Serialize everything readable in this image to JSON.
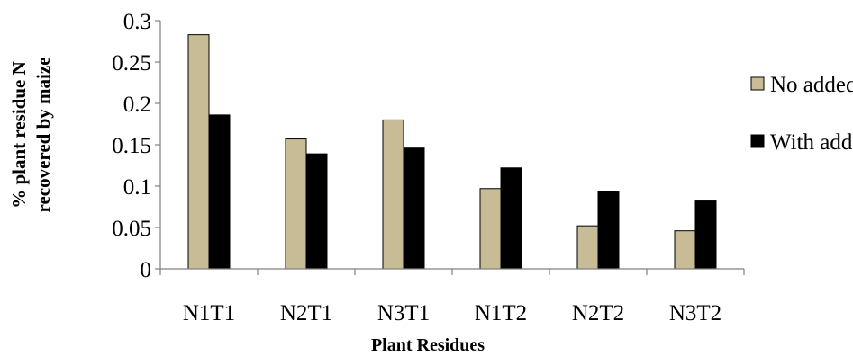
{
  "chart_data": {
    "type": "bar",
    "title": "",
    "xlabel": "Plant Residues",
    "ylabel_lines": [
      "% plant residue N",
      "recovered by maize"
    ],
    "categories": [
      "N1T1",
      "N2T1",
      "N3T1",
      "N1T2",
      "N2T2",
      "N3T2"
    ],
    "ylim": [
      0,
      0.3
    ],
    "yticks": [
      0,
      0.05,
      0.1,
      0.15,
      0.2,
      0.25,
      0.3
    ],
    "ytick_labels": [
      "0",
      "0.05",
      "0.1",
      "0.15",
      "0.2",
      "0.25",
      "0.3"
    ],
    "grid": false,
    "legend_position": "right",
    "series": [
      {
        "name": "No added NR",
        "color": "#c8bc96",
        "values": [
          0.283,
          0.157,
          0.18,
          0.097,
          0.052,
          0.046
        ]
      },
      {
        "name": "With added NR",
        "color": "#000000",
        "values": [
          0.186,
          0.139,
          0.146,
          0.122,
          0.094,
          0.082
        ]
      }
    ]
  }
}
